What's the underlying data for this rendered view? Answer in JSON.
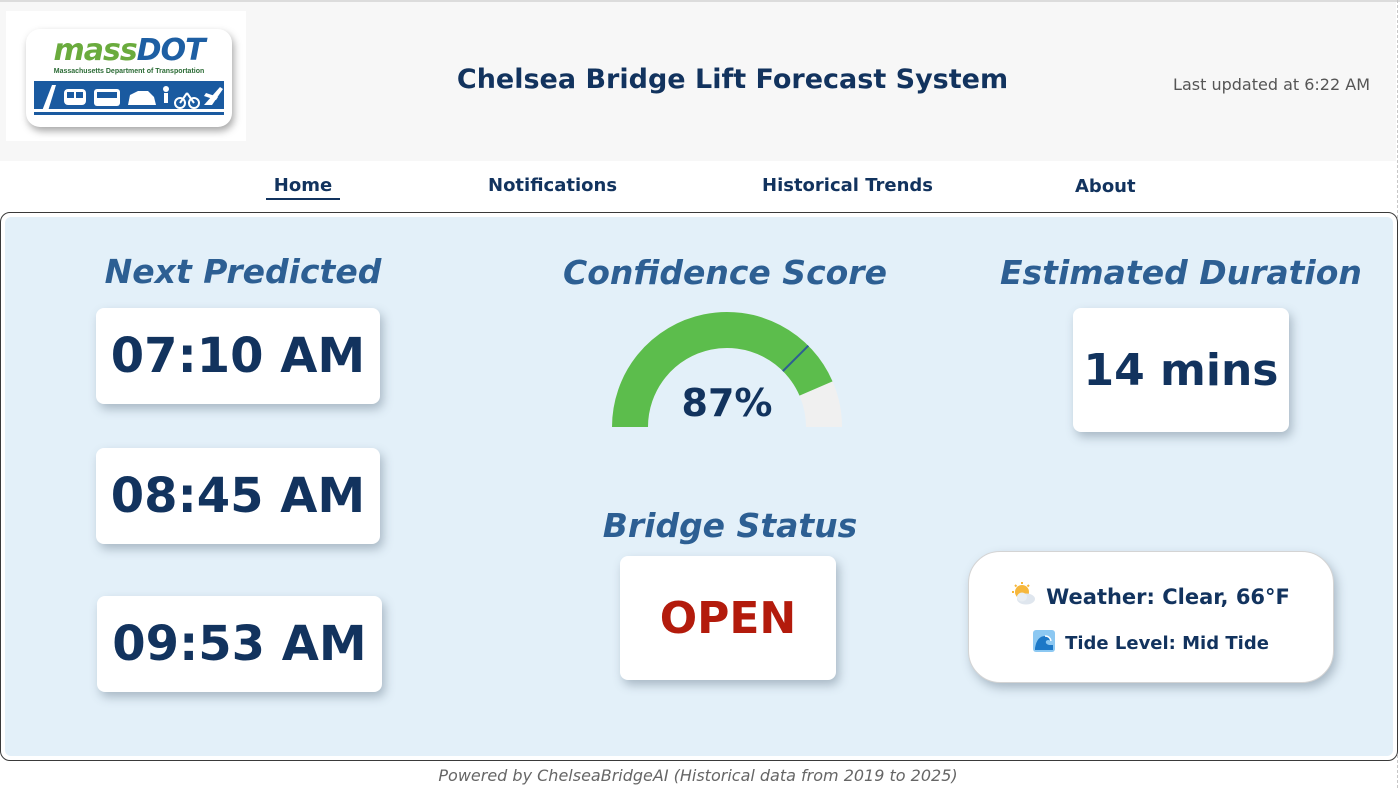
{
  "header": {
    "logo_brand_part1": "mass",
    "logo_brand_part2": "DOT",
    "logo_subtitle": "Massachusetts Department of Transportation",
    "title": "Chelsea Bridge Lift Forecast System",
    "last_updated": "Last updated at 6:22 AM"
  },
  "nav": {
    "items": [
      {
        "label": "Home",
        "active": true
      },
      {
        "label": "Notifications",
        "active": false
      },
      {
        "label": "Historical Trends",
        "active": false
      },
      {
        "label": "About",
        "active": false
      }
    ]
  },
  "next_predicted": {
    "title": "Next Predicted",
    "times": [
      "07:10 AM",
      "08:45 AM",
      "09:53 AM"
    ]
  },
  "confidence": {
    "title": "Confidence Score",
    "value_percent": 87,
    "display": "87%"
  },
  "bridge_status": {
    "title": "Bridge Status",
    "value": "OPEN",
    "color": "#b31b0c"
  },
  "duration": {
    "title": "Estimated Duration",
    "value": "14 mins"
  },
  "conditions": {
    "weather_icon": "sun-behind-cloud-icon",
    "weather": "Weather: Clear, 66°F",
    "tide_icon": "wave-icon",
    "tide": "Tide Level: Mid Tide"
  },
  "colors": {
    "primary_navy": "#12335e",
    "section_title_blue": "#2d5f93",
    "panel_background": "#e3f0f9",
    "gauge_fill": "#5cbd4c",
    "gauge_track": "#f0f0f0",
    "status_open": "#b31b0c"
  },
  "footer": {
    "text": "Powered by ChelseaBridgeAI (Historical data from 2019 to 2025)"
  }
}
